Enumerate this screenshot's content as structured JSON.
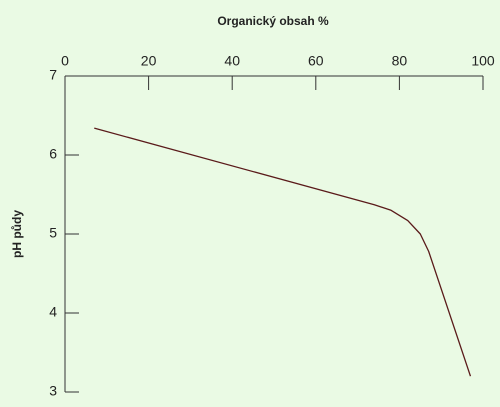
{
  "chart_data": {
    "type": "line",
    "title": "Organický obsah %",
    "y_label": "pH půdy",
    "x": [
      7,
      74,
      78,
      82,
      85,
      87,
      97
    ],
    "values": [
      6.34,
      5.37,
      5.3,
      5.17,
      5.0,
      4.78,
      3.2
    ],
    "color": "#5a1a1a",
    "xlim": [
      0,
      100
    ],
    "xticks": [
      0,
      20,
      40,
      60,
      80,
      100
    ],
    "ylim": [
      3,
      7
    ],
    "yticks": [
      3,
      4,
      5,
      6,
      7
    ]
  }
}
